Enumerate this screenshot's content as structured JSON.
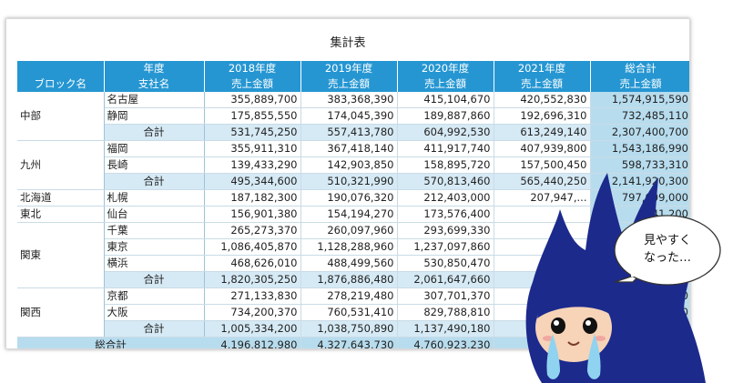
{
  "sheet": {
    "title": "集計表",
    "header_row1": [
      "",
      "年度",
      "2018年度",
      "2019年度",
      "2020年度",
      "2021年度",
      "総合計"
    ],
    "header_row2": [
      "ブロック名",
      "支社名",
      "売上金額",
      "売上金額",
      "売上金額",
      "売上金額",
      "売上金額"
    ],
    "rows": [
      {
        "kind": "data",
        "block": "中部",
        "block_span": 3,
        "branch": "名古屋",
        "values": [
          "355,889,700",
          "383,368,390",
          "415,104,670",
          "420,552,830"
        ],
        "total": "1,574,915,590"
      },
      {
        "kind": "data",
        "branch": "静岡",
        "values": [
          "175,855,550",
          "174,045,390",
          "189,887,860",
          "192,696,310"
        ],
        "total": "732,485,110"
      },
      {
        "kind": "sub",
        "label": "合計",
        "values": [
          "531,745,250",
          "557,413,780",
          "604,992,530",
          "613,249,140"
        ],
        "total": "2,307,400,700"
      },
      {
        "kind": "data",
        "block": "九州",
        "block_span": 3,
        "branch": "福岡",
        "values": [
          "355,911,310",
          "367,418,140",
          "411,917,740",
          "407,939,800"
        ],
        "total": "1,543,186,990"
      },
      {
        "kind": "data",
        "branch": "長崎",
        "values": [
          "139,433,290",
          "142,903,850",
          "158,895,720",
          "157,500,450"
        ],
        "total": "598,733,310"
      },
      {
        "kind": "sub",
        "label": "合計",
        "values": [
          "495,344,600",
          "510,321,990",
          "570,813,460",
          "565,440,250"
        ],
        "total": "2,141,920,300"
      },
      {
        "kind": "data",
        "block": "北海道",
        "block_span": 1,
        "branch": "札幌",
        "values": [
          "187,182,300",
          "190,076,320",
          "212,403,000",
          "207,947,..."
        ],
        "total": "797,609,000"
      },
      {
        "kind": "data",
        "block": "東北",
        "block_span": 1,
        "branch": "仙台",
        "values": [
          "156,901,380",
          "154,194,270",
          "173,576,400",
          ""
        ],
        "total": "...041,200"
      },
      {
        "kind": "data",
        "block": "関東",
        "block_span": 4,
        "branch": "千葉",
        "values": [
          "265,273,370",
          "260,097,960",
          "293,699,330",
          ""
        ],
        "total": ""
      },
      {
        "kind": "data",
        "branch": "東京",
        "values": [
          "1,086,405,870",
          "1,128,288,960",
          "1,237,097,860",
          ""
        ],
        "total": ""
      },
      {
        "kind": "data",
        "branch": "横浜",
        "values": [
          "468,626,010",
          "488,499,560",
          "530,850,470",
          ""
        ],
        "total": ""
      },
      {
        "kind": "sub",
        "label": "合計",
        "values": [
          "1,820,305,250",
          "1,876,886,480",
          "2,061,647,660",
          ""
        ],
        "total": ""
      },
      {
        "kind": "data",
        "block": "関西",
        "block_span": 3,
        "branch": "京都",
        "values": [
          "271,133,830",
          "278,219,480",
          "307,701,370",
          ""
        ],
        "total": "...190"
      },
      {
        "kind": "data",
        "branch": "大阪",
        "values": [
          "734,200,370",
          "760,531,410",
          "829,788,810",
          ""
        ],
        "total": "...6,070"
      },
      {
        "kind": "sub",
        "label": "合計",
        "values": [
          "1,005,334,200",
          "1,038,750,890",
          "1,137,490,180",
          ""
        ],
        "total": "...03,260"
      },
      {
        "kind": "grand",
        "label": "総合計",
        "values": [
          "4,196,812,980",
          "4,327,643,730",
          "4,760,923,230",
          "4..."
        ],
        "total": "...5,294,810"
      }
    ]
  },
  "bubble": {
    "line1": "見やすく",
    "line2": "なった…"
  },
  "colors": {
    "header_bg": "#2596d2",
    "total_bg": "#b7dcee",
    "subtotal_bg": "#d6eaf5",
    "mascot_navy": "#1c2a8c"
  }
}
